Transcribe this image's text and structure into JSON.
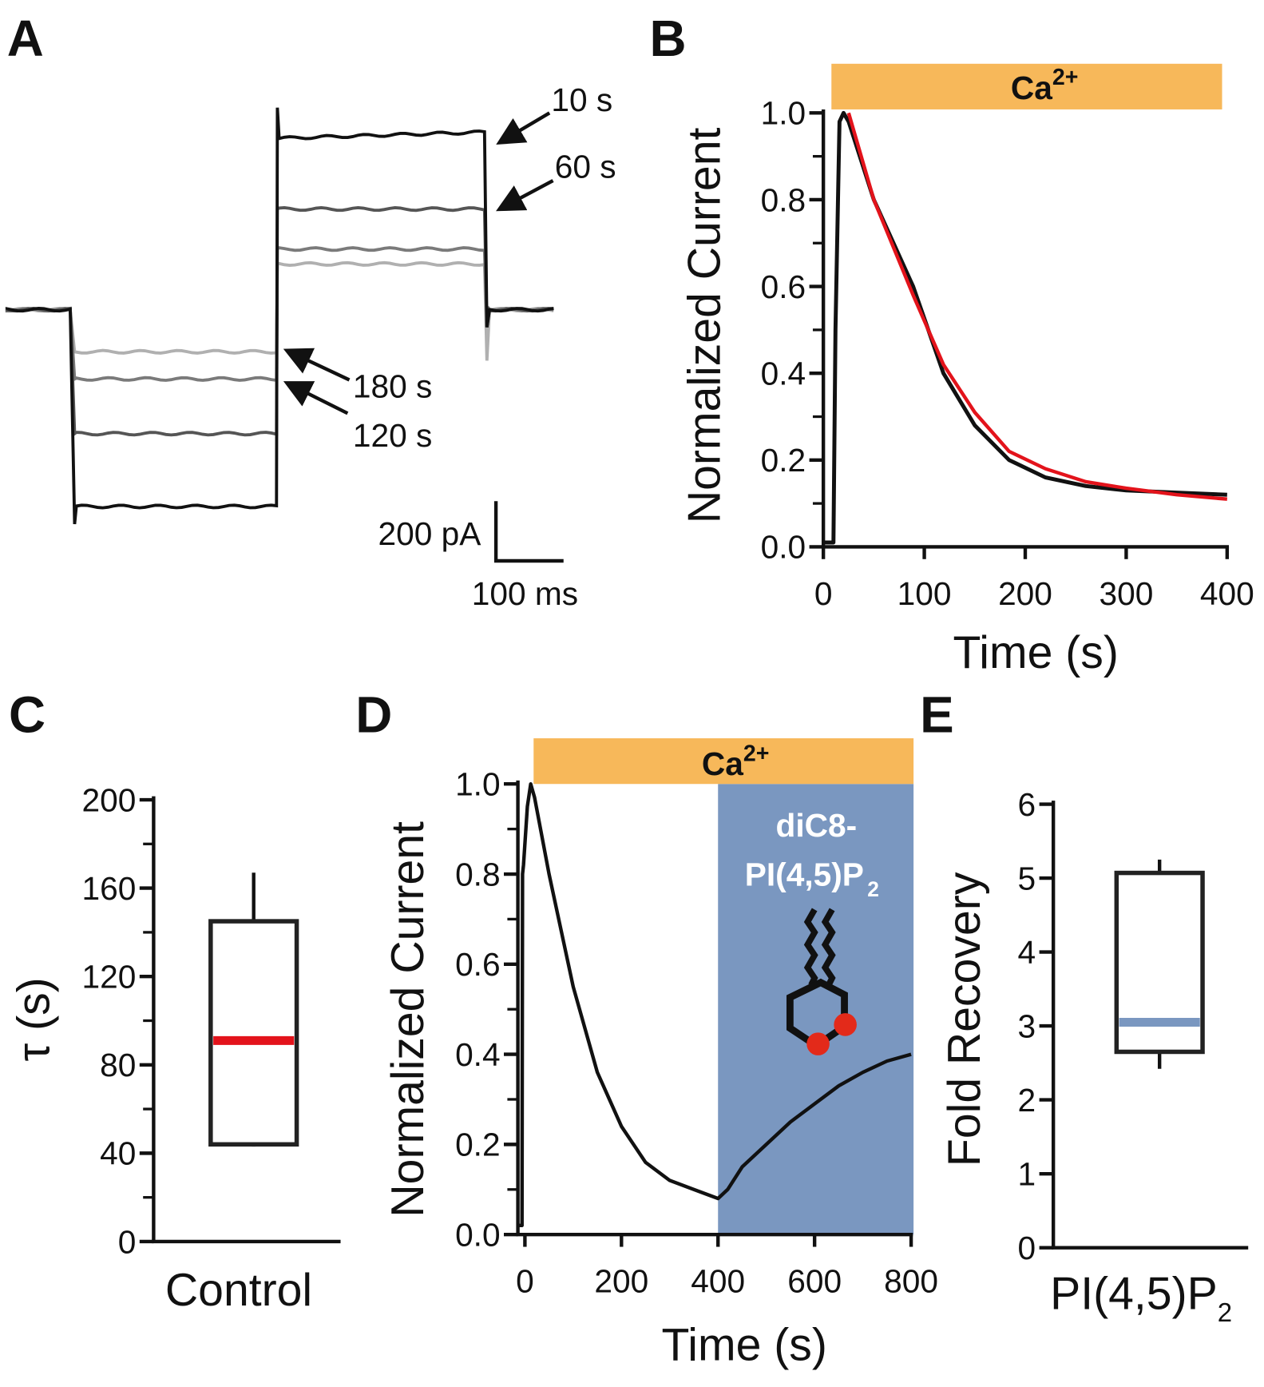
{
  "colors": {
    "calcium_bar": "#f7b85a",
    "pip2_region": "#7a97c0",
    "fit": "#e3131b",
    "trace": "#111111",
    "median_c": "#e3131b",
    "median_e": "#7a97c0",
    "lipid_headgroup_phosphates": "#e32a1a"
  },
  "chart_data": [
    {
      "panel": "A",
      "label": "A",
      "type": "line",
      "series": [
        {
          "name": "10 s",
          "color": "#111111",
          "step1_pA": -659,
          "step2_pA": 574
        },
        {
          "name": "60 s",
          "color": "#555555",
          "step1_pA": -415,
          "step2_pA": 337
        },
        {
          "name": "120 s",
          "color": "#7a7a7a",
          "step1_pA": -232,
          "step2_pA": 203
        },
        {
          "name": "180 s",
          "color": "#b0b0b0",
          "step1_pA": -141,
          "step2_pA": 153
        }
      ],
      "protocol_ms": {
        "baseline_before": 100,
        "step1": 300,
        "step2": 310,
        "baseline_after": 100
      },
      "scale_bar": {
        "current": "200 pA",
        "time": "100 ms"
      }
    },
    {
      "panel": "B",
      "label": "B",
      "type": "line",
      "xlabel": "Time (s)",
      "ylabel": "Normalized Current",
      "xlim": [
        0,
        400
      ],
      "ylim": [
        0,
        1.0
      ],
      "xticks": [
        "0",
        "100",
        "200",
        "300",
        "400"
      ],
      "yticks": [
        "0.0",
        "0.2",
        "0.4",
        "0.6",
        "0.8",
        "1.0"
      ],
      "bar_label": "Ca",
      "bar_label_sup": "2+",
      "bar_range": [
        8,
        395
      ],
      "series": [
        {
          "role": "data",
          "color": "#111111",
          "x": [
            0,
            10,
            12,
            16,
            20,
            25,
            50,
            89,
            119,
            150,
            184,
            220,
            260,
            300,
            350,
            400
          ],
          "y": [
            0.01,
            0.01,
            0.5,
            0.98,
            1.0,
            0.98,
            0.8,
            0.6,
            0.4,
            0.28,
            0.2,
            0.16,
            0.14,
            0.13,
            0.125,
            0.12
          ]
        },
        {
          "role": "fit",
          "color": "#e3131b",
          "x": [
            25,
            50,
            89,
            119,
            150,
            184,
            220,
            260,
            300,
            350,
            400
          ],
          "y": [
            1.0,
            0.8,
            0.58,
            0.42,
            0.31,
            0.22,
            0.18,
            0.15,
            0.135,
            0.12,
            0.11
          ]
        }
      ]
    },
    {
      "panel": "C",
      "label": "C",
      "type": "box",
      "ylabel": "τ (s)",
      "categories": [
        "Control"
      ],
      "ylim": [
        0,
        200
      ],
      "yticks": [
        "0",
        "40",
        "80",
        "120",
        "160",
        "200"
      ],
      "box": {
        "min": 43,
        "q1": 44,
        "median": 91,
        "q3": 145,
        "max": 167
      }
    },
    {
      "panel": "D",
      "label": "D",
      "type": "line",
      "xlabel": "Time (s)",
      "ylabel": "Normalized Current",
      "xlim": [
        -15,
        800
      ],
      "ylim": [
        0,
        1.0
      ],
      "xticks": [
        "0",
        "200",
        "400",
        "600",
        "800"
      ],
      "yticks": [
        "0.0",
        "0.2",
        "0.4",
        "0.6",
        "0.8",
        "1.0"
      ],
      "bar_label": "Ca",
      "bar_label_sup": "2+",
      "bar_range": [
        18,
        805
      ],
      "treatment_label_1": "diC8-",
      "treatment_label_2": "PI(4,5)P",
      "treatment_label_sub": "2",
      "treatment_range": [
        400,
        805
      ],
      "series": [
        {
          "role": "data",
          "color": "#111111",
          "x": [
            -15,
            -6,
            -5,
            -3,
            5,
            12,
            20,
            50,
            100,
            150,
            200,
            250,
            300,
            350,
            400,
            420,
            450,
            500,
            550,
            600,
            650,
            700,
            750,
            800
          ],
          "y": [
            0.02,
            0.02,
            0.8,
            0.82,
            0.95,
            1.0,
            0.97,
            0.8,
            0.55,
            0.36,
            0.24,
            0.16,
            0.12,
            0.1,
            0.08,
            0.1,
            0.15,
            0.2,
            0.25,
            0.29,
            0.33,
            0.36,
            0.385,
            0.4
          ]
        }
      ]
    },
    {
      "panel": "E",
      "label": "E",
      "type": "box",
      "ylabel": "Fold Recovery",
      "category": "PI(4,5)P",
      "category_sub": "2",
      "ylim": [
        0,
        6
      ],
      "yticks": [
        "0",
        "1",
        "2",
        "3",
        "4",
        "5",
        "6"
      ],
      "box": {
        "min": 2.42,
        "q1": 2.65,
        "median": 3.05,
        "q3": 5.07,
        "max": 5.25
      }
    }
  ]
}
